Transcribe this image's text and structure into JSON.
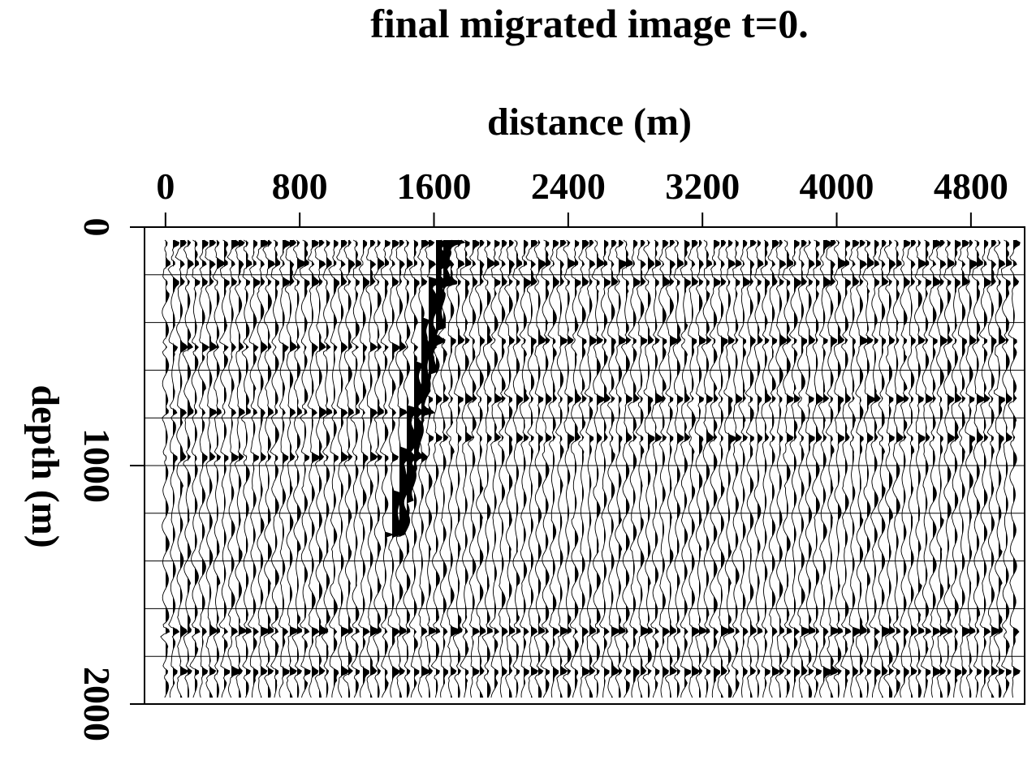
{
  "chart_data": {
    "type": "seismic-section",
    "title": "final migrated image t=0.",
    "x_label": "distance (m)",
    "y_label": "depth (m)",
    "xlim": [
      -125,
      5120
    ],
    "xticks": [
      0,
      800,
      1600,
      2400,
      3200,
      4000,
      4800
    ],
    "ylim": [
      0,
      2000
    ],
    "yticks": [
      0,
      1000,
      2000
    ],
    "ygrid": [
      0,
      200,
      400,
      600,
      800,
      1000,
      1200,
      1400,
      1600,
      1800,
      2000
    ],
    "y_inverted": true,
    "x_axis_position": "top",
    "color": "#000000"
  }
}
